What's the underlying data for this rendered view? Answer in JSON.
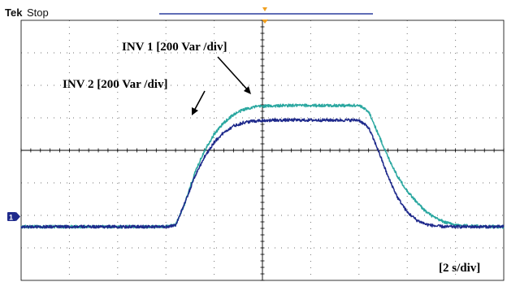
{
  "header": {
    "brand": "Tek",
    "status": "Stop"
  },
  "colors": {
    "inv1": "#2aa7a0",
    "inv2": "#1f2a8c",
    "record_bar": "#2b3f9e",
    "trigger": "#f0a020",
    "grid": "#000000"
  },
  "chart_data": {
    "type": "line",
    "title": "",
    "xlabel": "",
    "ylabel": "",
    "grid": true,
    "x_divisions": 10,
    "y_divisions": 8,
    "xlim": [
      0,
      10
    ],
    "ylim": [
      0,
      8
    ],
    "timebase_label": "[2 s/div]",
    "channel_marker": "1",
    "series": [
      {
        "name": "INV 1  [200 Var /div]",
        "color": "#2aa7a0",
        "x": [
          0,
          0.5,
          1,
          1.5,
          2,
          2.5,
          3,
          3.2,
          3.4,
          3.6,
          3.8,
          4.0,
          4.2,
          4.4,
          4.6,
          4.8,
          5.0,
          5.5,
          6.0,
          6.5,
          7.0,
          7.2,
          7.4,
          7.6,
          7.8,
          8.0,
          8.2,
          8.4,
          8.6,
          8.8,
          9.0,
          9.5,
          10
        ],
        "values": [
          1.65,
          1.65,
          1.65,
          1.65,
          1.65,
          1.65,
          1.65,
          1.7,
          2.4,
          3.3,
          4.0,
          4.5,
          4.85,
          5.1,
          5.25,
          5.33,
          5.36,
          5.38,
          5.38,
          5.38,
          5.38,
          5.2,
          4.5,
          3.8,
          3.2,
          2.75,
          2.4,
          2.1,
          1.9,
          1.78,
          1.7,
          1.66,
          1.65
        ]
      },
      {
        "name": "INV 2  [200 Var /div]",
        "color": "#1f2a8c",
        "x": [
          0,
          0.5,
          1,
          1.5,
          2,
          2.5,
          3,
          3.2,
          3.4,
          3.6,
          3.8,
          4.0,
          4.2,
          4.4,
          4.6,
          4.8,
          5.0,
          5.5,
          6.0,
          6.5,
          7.0,
          7.2,
          7.4,
          7.6,
          7.8,
          8.0,
          8.2,
          8.4,
          8.6,
          8.8,
          9.0,
          9.5,
          10
        ],
        "values": [
          1.65,
          1.65,
          1.65,
          1.65,
          1.65,
          1.65,
          1.65,
          1.7,
          2.4,
          3.2,
          3.8,
          4.25,
          4.55,
          4.75,
          4.85,
          4.9,
          4.92,
          4.93,
          4.93,
          4.93,
          4.93,
          4.7,
          4.0,
          3.2,
          2.55,
          2.1,
          1.85,
          1.72,
          1.67,
          1.65,
          1.65,
          1.65,
          1.65
        ]
      }
    ]
  }
}
